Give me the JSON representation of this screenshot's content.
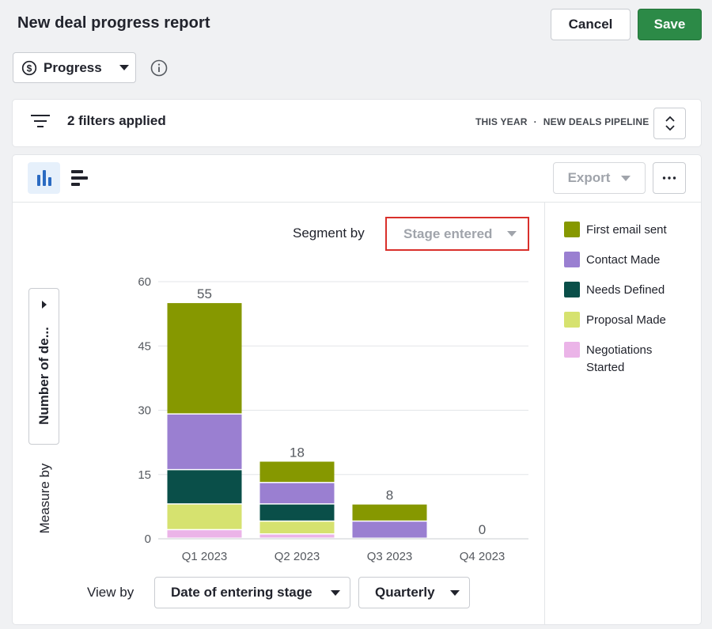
{
  "header": {
    "title": "New deal progress report",
    "cancel_label": "Cancel",
    "save_label": "Save",
    "save_color": "#2c8a47"
  },
  "report_type": {
    "label": "Progress",
    "icon": "dollar-circle-icon"
  },
  "filters": {
    "summary": "2 filters applied",
    "period": "THIS YEAR",
    "separator": "·",
    "pipeline": "NEW DEALS PIPELINE"
  },
  "toolbar": {
    "export_label": "Export",
    "active_view": "bar-chart",
    "views": [
      "bar-chart-icon",
      "horizontal-bar-chart-icon"
    ]
  },
  "segment": {
    "label": "Segment by",
    "value": "Stage entered"
  },
  "measure": {
    "label": "Measure by",
    "value": "Number of de..."
  },
  "view_by": {
    "label": "View by",
    "value": "Date of entering stage",
    "interval": "Quarterly"
  },
  "legend": [
    {
      "name": "First email sent",
      "color": "#869800"
    },
    {
      "name": "Contact Made",
      "color": "#9a7fd1"
    },
    {
      "name": "Needs Defined",
      "color": "#0a4f49"
    },
    {
      "name": "Proposal Made",
      "color": "#d6e26f"
    },
    {
      "name": "Negotiations Started",
      "color": "#ebb4e8"
    }
  ],
  "chart_data": {
    "type": "bar",
    "stacked": true,
    "categories": [
      "Q1 2023",
      "Q2 2023",
      "Q3 2023",
      "Q4 2023"
    ],
    "totals": [
      55,
      18,
      8,
      0
    ],
    "ylim": [
      0,
      60
    ],
    "yticks": [
      0,
      15,
      30,
      45,
      60
    ],
    "grid": true,
    "series": [
      {
        "name": "Negotiations Started",
        "values": [
          2,
          1,
          0,
          0
        ]
      },
      {
        "name": "Proposal Made",
        "values": [
          6,
          3,
          0,
          0
        ]
      },
      {
        "name": "Needs Defined",
        "values": [
          8,
          4,
          0,
          0
        ]
      },
      {
        "name": "Contact Made",
        "values": [
          13,
          5,
          4,
          0
        ]
      },
      {
        "name": "First email sent",
        "values": [
          26,
          5,
          4,
          0
        ]
      }
    ]
  }
}
